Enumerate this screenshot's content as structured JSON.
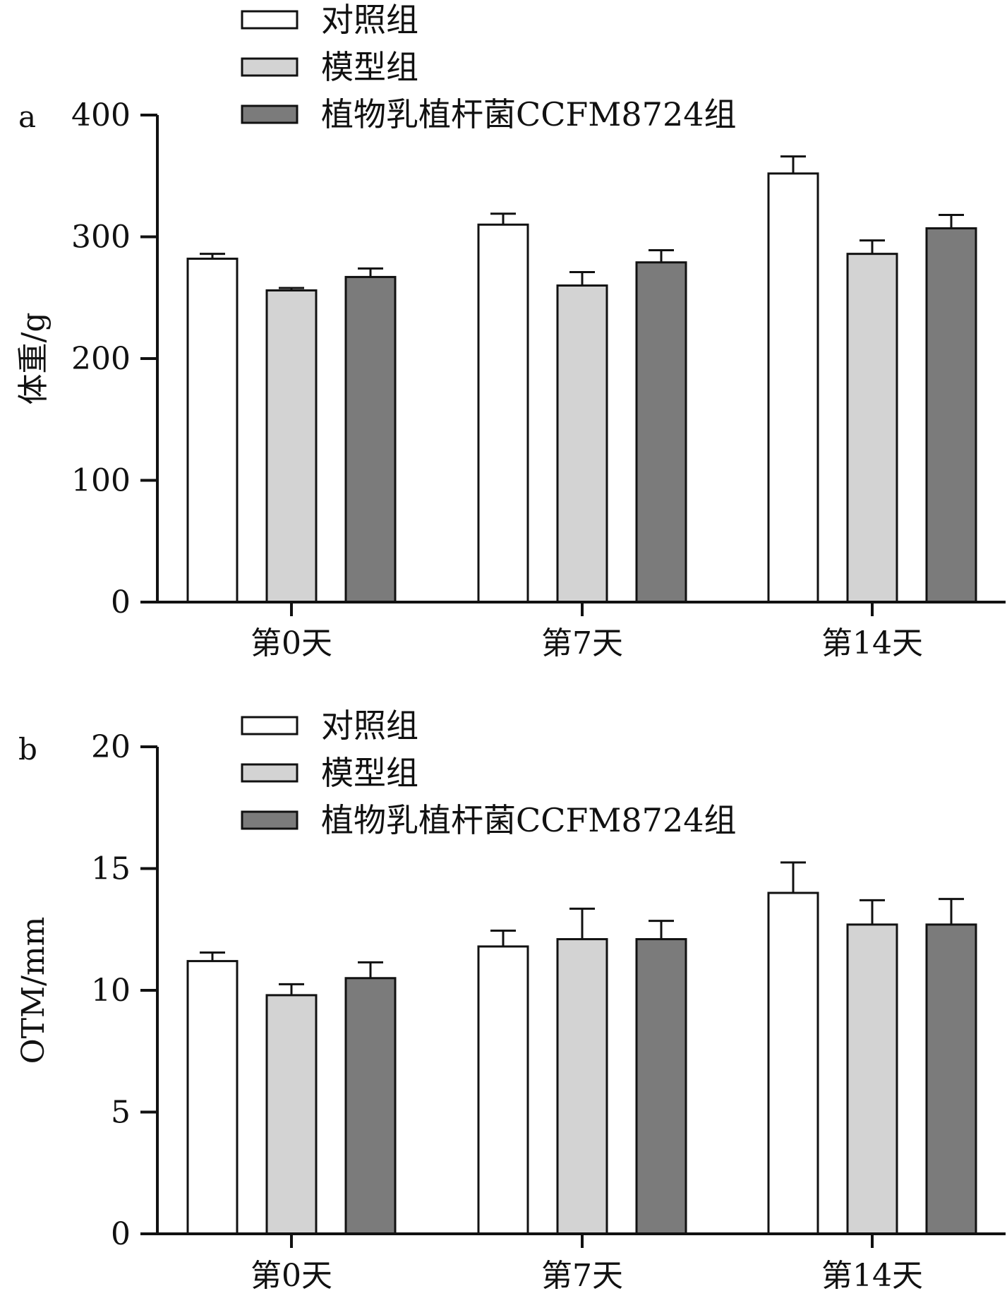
{
  "chart_data": [
    {
      "type": "bar",
      "panel_label": "a",
      "title": "",
      "xlabel": "",
      "ylabel": "体重/g",
      "ylim": [
        0,
        400
      ],
      "yticks": [
        0,
        100,
        200,
        300,
        400
      ],
      "categories": [
        "第0天",
        "第7天",
        "第14天"
      ],
      "legend_position": "top",
      "grid": false,
      "series": [
        {
          "name": "对照组",
          "color": "#ffffff",
          "values": [
            282,
            310,
            352
          ],
          "errors": [
            4,
            9,
            14
          ]
        },
        {
          "name": "模型组",
          "color": "#d3d3d3",
          "values": [
            256,
            260,
            286
          ],
          "errors": [
            2,
            11,
            11
          ]
        },
        {
          "name": "植物乳植杆菌CCFM8724组",
          "color": "#7b7b7b",
          "values": [
            267,
            279,
            307
          ],
          "errors": [
            7,
            10,
            11
          ]
        }
      ]
    },
    {
      "type": "bar",
      "panel_label": "b",
      "title": "",
      "xlabel": "",
      "ylabel": "OTM/mm",
      "ylim": [
        0,
        20
      ],
      "yticks": [
        0,
        5,
        10,
        15,
        20
      ],
      "categories": [
        "第0天",
        "第7天",
        "第14天"
      ],
      "legend_position": "top",
      "grid": false,
      "series": [
        {
          "name": "对照组",
          "color": "#ffffff",
          "values": [
            11.2,
            11.8,
            14.0
          ],
          "errors": [
            0.35,
            0.65,
            1.25
          ]
        },
        {
          "name": "模型组",
          "color": "#d3d3d3",
          "values": [
            9.8,
            12.1,
            12.7
          ],
          "errors": [
            0.45,
            1.25,
            1.0
          ]
        },
        {
          "name": "植物乳植杆菌CCFM8724组",
          "color": "#7b7b7b",
          "values": [
            10.5,
            12.1,
            12.7
          ],
          "errors": [
            0.65,
            0.75,
            1.05
          ]
        }
      ]
    }
  ]
}
